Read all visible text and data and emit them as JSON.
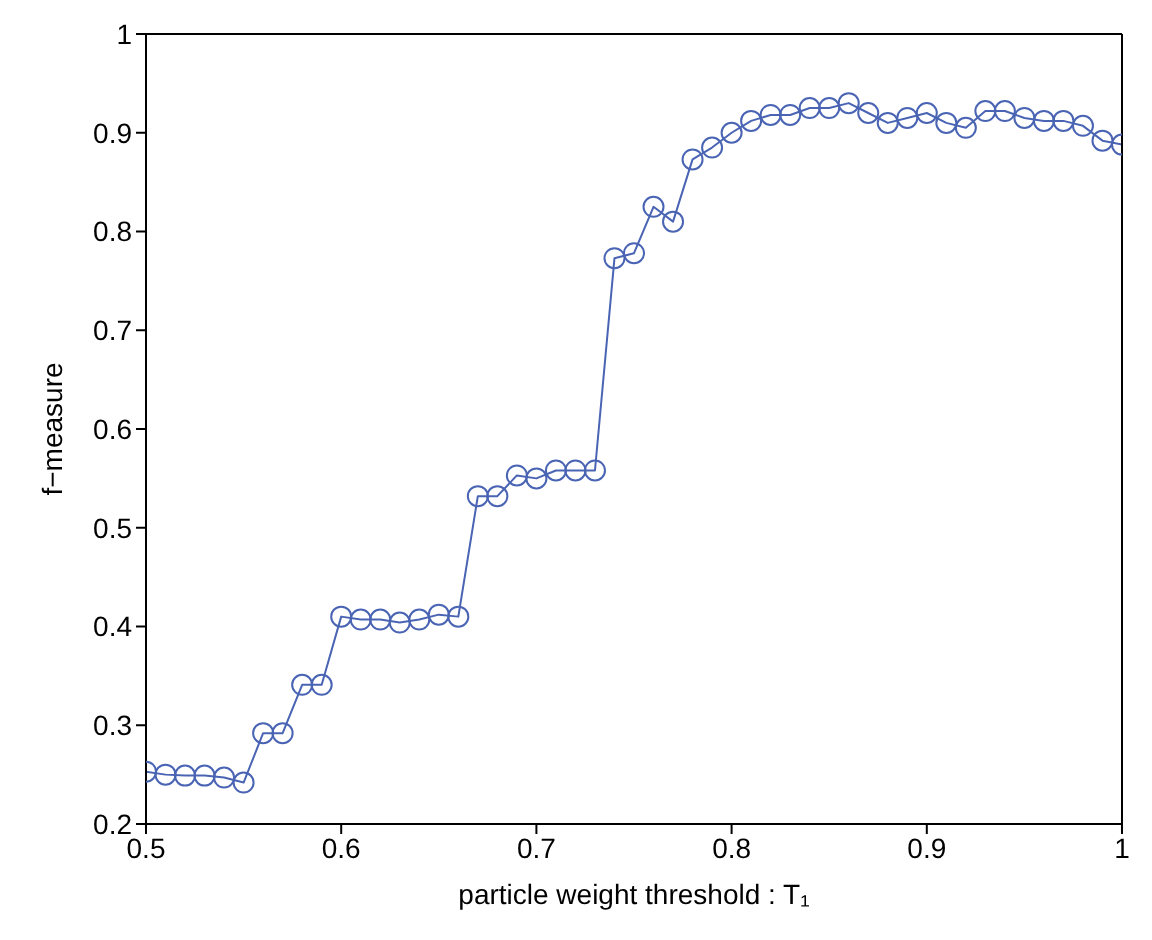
{
  "chart_data": {
    "type": "line",
    "xlabel": "particle weight threshold : T₁",
    "ylabel": "f−measure",
    "x": [
      0.5,
      0.51,
      0.52,
      0.53,
      0.54,
      0.55,
      0.56,
      0.57,
      0.58,
      0.59,
      0.6,
      0.61,
      0.62,
      0.63,
      0.64,
      0.65,
      0.66,
      0.67,
      0.68,
      0.69,
      0.7,
      0.71,
      0.72,
      0.73,
      0.74,
      0.75,
      0.76,
      0.77,
      0.78,
      0.79,
      0.8,
      0.81,
      0.82,
      0.83,
      0.84,
      0.85,
      0.86,
      0.87,
      0.88,
      0.89,
      0.9,
      0.91,
      0.92,
      0.93,
      0.94,
      0.95,
      0.96,
      0.97,
      0.98,
      0.99,
      1.0
    ],
    "series": [
      {
        "color": "#4a64b4",
        "values": [
          0.253,
          0.25,
          0.249,
          0.249,
          0.247,
          0.242,
          0.292,
          0.292,
          0.341,
          0.341,
          0.41,
          0.407,
          0.407,
          0.404,
          0.407,
          0.412,
          0.41,
          0.532,
          0.532,
          0.553,
          0.55,
          0.558,
          0.558,
          0.558,
          0.773,
          0.778,
          0.825,
          0.81,
          0.873,
          0.885,
          0.9,
          0.912,
          0.918,
          0.918,
          0.925,
          0.925,
          0.93,
          0.92,
          0.91,
          0.915,
          0.92,
          0.91,
          0.905,
          0.922,
          0.922,
          0.915,
          0.912,
          0.912,
          0.907,
          0.892,
          0.888
        ]
      }
    ],
    "xlim": [
      0.5,
      1
    ],
    "xticks": [
      0.5,
      0.6,
      0.7,
      0.8,
      0.9,
      1
    ],
    "ylim": [
      0.2,
      1
    ],
    "yticks": [
      0.2,
      0.3,
      0.4,
      0.5,
      0.6,
      0.7,
      0.8,
      0.9,
      1
    ],
    "marker": "circle",
    "line_style": "solid",
    "grid": false,
    "legend": false
  }
}
